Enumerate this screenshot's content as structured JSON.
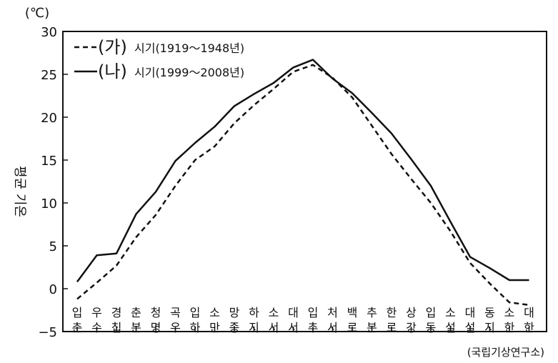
{
  "chart_data": {
    "type": "line",
    "unit_label": "(℃)",
    "ylabel": "평균 기온",
    "ylim": [
      -5,
      30
    ],
    "yticks": [
      -5,
      0,
      5,
      10,
      15,
      20,
      25,
      30
    ],
    "grid": false,
    "legend_position": "top-left",
    "source": "(국립기상연구소)",
    "categories": [
      [
        "입",
        "춘"
      ],
      [
        "우",
        "수"
      ],
      [
        "경",
        "칩"
      ],
      [
        "춘",
        "분"
      ],
      [
        "청",
        "명"
      ],
      [
        "곡",
        "우"
      ],
      [
        "입",
        "하"
      ],
      [
        "소",
        "만"
      ],
      [
        "망",
        "종"
      ],
      [
        "하",
        "지"
      ],
      [
        "소",
        "서"
      ],
      [
        "대",
        "서"
      ],
      [
        "입",
        "추"
      ],
      [
        "처",
        "서"
      ],
      [
        "백",
        "로"
      ],
      [
        "추",
        "분"
      ],
      [
        "한",
        "로"
      ],
      [
        "상",
        "강"
      ],
      [
        "입",
        "동"
      ],
      [
        "소",
        "설"
      ],
      [
        "대",
        "설"
      ],
      [
        "동",
        "지"
      ],
      [
        "소",
        "한"
      ],
      [
        "대",
        "한"
      ]
    ],
    "series": [
      {
        "marker": "(가)",
        "name": "시기(1919～1948년)",
        "style": "dashed",
        "values": [
          -1.2,
          0.7,
          2.7,
          6.0,
          8.6,
          12.0,
          15.0,
          16.6,
          19.3,
          21.4,
          23.3,
          25.3,
          26.1,
          24.6,
          22.3,
          19.0,
          15.7,
          12.8,
          10.0,
          6.7,
          3.0,
          0.6,
          -1.6,
          -1.9
        ]
      },
      {
        "marker": "(나)",
        "name": "시기(1999～2008년)",
        "style": "solid",
        "values": [
          0.8,
          3.9,
          4.1,
          8.7,
          11.3,
          14.9,
          17.0,
          18.9,
          21.3,
          22.7,
          24.0,
          25.8,
          26.7,
          24.5,
          22.8,
          20.5,
          18.1,
          15.1,
          12.0,
          7.8,
          3.7,
          2.4,
          1.0,
          1.0
        ]
      }
    ]
  }
}
